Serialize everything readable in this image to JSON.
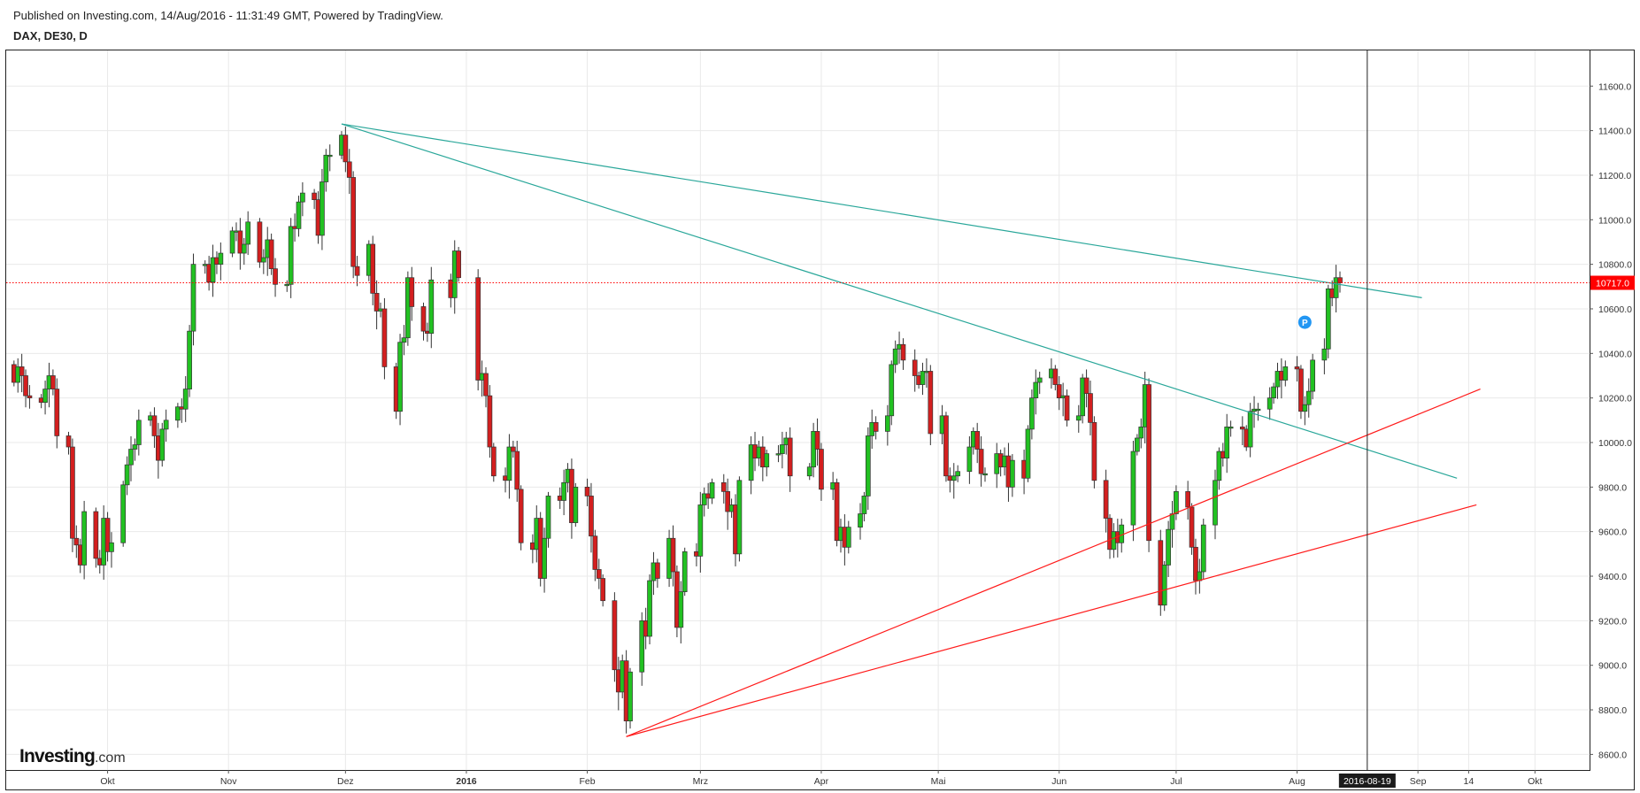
{
  "header": {
    "published": "Published on Investing.com, 14/Aug/2016 - 11:31:49 GMT, Powered by TradingView.",
    "symbol": "DAX, DE30, D"
  },
  "logo": {
    "brand": "Investing",
    "suffix": ".com"
  },
  "colors": {
    "up": "#22c122",
    "down": "#d31f1f",
    "teal": "#2aa79a",
    "red_trend": "#ff1a1a",
    "price_tag": "#ff0000",
    "cursor_tag": "#1b1b1b",
    "marker": "#2196f3"
  },
  "chart_data": {
    "type": "candlestick",
    "y_ticks": [
      "11600.0",
      "11400.0",
      "11200.0",
      "11000.0",
      "10800.0",
      "10600.0",
      "10400.0",
      "10200.0",
      "10000.0",
      "9800.0",
      "9600.0",
      "9400.0",
      "9200.0",
      "9000.0",
      "8800.0",
      "8600.0"
    ],
    "ylim": [
      8530,
      11760
    ],
    "x_ticks": [
      {
        "label": "Okt",
        "date": "2015-10-01",
        "bold": false
      },
      {
        "label": "Nov",
        "date": "2015-11-01",
        "bold": false
      },
      {
        "label": "Dez",
        "date": "2015-12-01",
        "bold": false
      },
      {
        "label": "2016",
        "date": "2016-01-01",
        "bold": true
      },
      {
        "label": "Feb",
        "date": "2016-02-01",
        "bold": false
      },
      {
        "label": "Mrz",
        "date": "2016-03-01",
        "bold": false
      },
      {
        "label": "Apr",
        "date": "2016-04-01",
        "bold": false
      },
      {
        "label": "Mai",
        "date": "2016-05-01",
        "bold": false
      },
      {
        "label": "Jun",
        "date": "2016-06-01",
        "bold": false
      },
      {
        "label": "Jul",
        "date": "2016-07-01",
        "bold": false
      },
      {
        "label": "Aug",
        "date": "2016-08-01",
        "bold": false
      },
      {
        "label": "Sep",
        "date": "2016-09-01",
        "bold": false
      },
      {
        "label": "14",
        "date": "2016-09-14",
        "bold": false
      },
      {
        "label": "Okt",
        "date": "2016-10-01",
        "bold": false
      }
    ],
    "xlim": [
      "2015-09-05",
      "2016-10-15"
    ],
    "last_price": 10717.0,
    "last_price_label": "10717.0",
    "cursor_date": "2016-08-19",
    "cursor_label": "2016-08-19",
    "marker": {
      "date": "2016-08-03",
      "value": 10540,
      "label": "P"
    },
    "trendlines": [
      {
        "name": "teal-upper",
        "color": "teal",
        "from": [
          "2015-11-30",
          11430
        ],
        "to": [
          "2016-09-02",
          10650
        ]
      },
      {
        "name": "teal-lower",
        "color": "teal",
        "from": [
          "2015-11-30",
          11430
        ],
        "to": [
          "2016-09-11",
          9840
        ]
      },
      {
        "name": "red-steep",
        "color": "red_trend",
        "from": [
          "2016-02-11",
          8680
        ],
        "to": [
          "2016-09-17",
          10240
        ]
      },
      {
        "name": "red-shallow",
        "color": "red_trend",
        "from": [
          "2016-02-11",
          8680
        ],
        "to": [
          "2016-09-16",
          9720
        ]
      }
    ],
    "closes": [
      {
        "d": "2015-09-07",
        "c": 10270
      },
      {
        "d": "2015-09-08",
        "c": 10340
      },
      {
        "d": "2015-09-09",
        "c": 10300
      },
      {
        "d": "2015-09-10",
        "c": 10210
      },
      {
        "d": "2015-09-11",
        "c": 10200
      },
      {
        "d": "2015-09-14",
        "c": 10180
      },
      {
        "d": "2015-09-15",
        "c": 10240
      },
      {
        "d": "2015-09-16",
        "c": 10300
      },
      {
        "d": "2015-09-17",
        "c": 10240
      },
      {
        "d": "2015-09-18",
        "c": 10030
      },
      {
        "d": "2015-09-21",
        "c": 9980
      },
      {
        "d": "2015-09-22",
        "c": 9570
      },
      {
        "d": "2015-09-23",
        "c": 9540
      },
      {
        "d": "2015-09-24",
        "c": 9450
      },
      {
        "d": "2015-09-25",
        "c": 9690
      },
      {
        "d": "2015-09-28",
        "c": 9480
      },
      {
        "d": "2015-09-29",
        "c": 9450
      },
      {
        "d": "2015-09-30",
        "c": 9660
      },
      {
        "d": "2015-10-01",
        "c": 9510
      },
      {
        "d": "2015-10-02",
        "c": 9550
      },
      {
        "d": "2015-10-05",
        "c": 9810
      },
      {
        "d": "2015-10-06",
        "c": 9900
      },
      {
        "d": "2015-10-07",
        "c": 9970
      },
      {
        "d": "2015-10-08",
        "c": 9990
      },
      {
        "d": "2015-10-09",
        "c": 10100
      },
      {
        "d": "2015-10-12",
        "c": 10120
      },
      {
        "d": "2015-10-13",
        "c": 10030
      },
      {
        "d": "2015-10-14",
        "c": 9920
      },
      {
        "d": "2015-10-15",
        "c": 10060
      },
      {
        "d": "2015-10-16",
        "c": 10100
      },
      {
        "d": "2015-10-19",
        "c": 10160
      },
      {
        "d": "2015-10-20",
        "c": 10150
      },
      {
        "d": "2015-10-21",
        "c": 10240
      },
      {
        "d": "2015-10-22",
        "c": 10500
      },
      {
        "d": "2015-10-23",
        "c": 10800
      },
      {
        "d": "2015-10-26",
        "c": 10800
      },
      {
        "d": "2015-10-27",
        "c": 10720
      },
      {
        "d": "2015-10-28",
        "c": 10830
      },
      {
        "d": "2015-10-29",
        "c": 10800
      },
      {
        "d": "2015-10-30",
        "c": 10850
      },
      {
        "d": "2015-11-02",
        "c": 10950
      },
      {
        "d": "2015-11-03",
        "c": 10950
      },
      {
        "d": "2015-11-04",
        "c": 10850
      },
      {
        "d": "2015-11-05",
        "c": 10890
      },
      {
        "d": "2015-11-06",
        "c": 10990
      },
      {
        "d": "2015-11-09",
        "c": 10810
      },
      {
        "d": "2015-11-10",
        "c": 10830
      },
      {
        "d": "2015-11-11",
        "c": 10910
      },
      {
        "d": "2015-11-12",
        "c": 10780
      },
      {
        "d": "2015-11-13",
        "c": 10710
      },
      {
        "d": "2015-11-16",
        "c": 10710
      },
      {
        "d": "2015-11-17",
        "c": 10970
      },
      {
        "d": "2015-11-18",
        "c": 10960
      },
      {
        "d": "2015-11-19",
        "c": 11080
      },
      {
        "d": "2015-11-20",
        "c": 11120
      },
      {
        "d": "2015-11-23",
        "c": 11090
      },
      {
        "d": "2015-11-24",
        "c": 10930
      },
      {
        "d": "2015-11-25",
        "c": 11170
      },
      {
        "d": "2015-11-26",
        "c": 11290
      },
      {
        "d": "2015-11-27",
        "c": 11290
      },
      {
        "d": "2015-11-30",
        "c": 11380
      },
      {
        "d": "2015-12-01",
        "c": 11260
      },
      {
        "d": "2015-12-02",
        "c": 11190
      },
      {
        "d": "2015-12-03",
        "c": 10790
      },
      {
        "d": "2015-12-04",
        "c": 10750
      },
      {
        "d": "2015-12-07",
        "c": 10890
      },
      {
        "d": "2015-12-08",
        "c": 10670
      },
      {
        "d": "2015-12-09",
        "c": 10590
      },
      {
        "d": "2015-12-10",
        "c": 10600
      },
      {
        "d": "2015-12-11",
        "c": 10340
      },
      {
        "d": "2015-12-14",
        "c": 10140
      },
      {
        "d": "2015-12-15",
        "c": 10450
      },
      {
        "d": "2015-12-16",
        "c": 10470
      },
      {
        "d": "2015-12-17",
        "c": 10740
      },
      {
        "d": "2015-12-18",
        "c": 10610
      },
      {
        "d": "2015-12-21",
        "c": 10500
      },
      {
        "d": "2015-12-22",
        "c": 10490
      },
      {
        "d": "2015-12-23",
        "c": 10730
      },
      {
        "d": "2015-12-28",
        "c": 10650
      },
      {
        "d": "2015-12-29",
        "c": 10860
      },
      {
        "d": "2015-12-30",
        "c": 10740
      },
      {
        "d": "2016-01-04",
        "c": 10280
      },
      {
        "d": "2016-01-05",
        "c": 10310
      },
      {
        "d": "2016-01-06",
        "c": 10210
      },
      {
        "d": "2016-01-07",
        "c": 9980
      },
      {
        "d": "2016-01-08",
        "c": 9850
      },
      {
        "d": "2016-01-11",
        "c": 9830
      },
      {
        "d": "2016-01-12",
        "c": 9980
      },
      {
        "d": "2016-01-13",
        "c": 9960
      },
      {
        "d": "2016-01-14",
        "c": 9790
      },
      {
        "d": "2016-01-15",
        "c": 9550
      },
      {
        "d": "2016-01-18",
        "c": 9520
      },
      {
        "d": "2016-01-19",
        "c": 9660
      },
      {
        "d": "2016-01-20",
        "c": 9390
      },
      {
        "d": "2016-01-21",
        "c": 9570
      },
      {
        "d": "2016-01-22",
        "c": 9760
      },
      {
        "d": "2016-01-25",
        "c": 9740
      },
      {
        "d": "2016-01-26",
        "c": 9820
      },
      {
        "d": "2016-01-27",
        "c": 9880
      },
      {
        "d": "2016-01-28",
        "c": 9640
      },
      {
        "d": "2016-01-29",
        "c": 9800
      },
      {
        "d": "2016-02-01",
        "c": 9760
      },
      {
        "d": "2016-02-02",
        "c": 9580
      },
      {
        "d": "2016-02-03",
        "c": 9430
      },
      {
        "d": "2016-02-04",
        "c": 9390
      },
      {
        "d": "2016-02-05",
        "c": 9290
      },
      {
        "d": "2016-02-08",
        "c": 8980
      },
      {
        "d": "2016-02-09",
        "c": 8880
      },
      {
        "d": "2016-02-10",
        "c": 9020
      },
      {
        "d": "2016-02-11",
        "c": 8750
      },
      {
        "d": "2016-02-12",
        "c": 8970
      },
      {
        "d": "2016-02-15",
        "c": 9200
      },
      {
        "d": "2016-02-16",
        "c": 9130
      },
      {
        "d": "2016-02-17",
        "c": 9380
      },
      {
        "d": "2016-02-18",
        "c": 9460
      },
      {
        "d": "2016-02-19",
        "c": 9390
      },
      {
        "d": "2016-02-22",
        "c": 9570
      },
      {
        "d": "2016-02-23",
        "c": 9420
      },
      {
        "d": "2016-02-24",
        "c": 9170
      },
      {
        "d": "2016-02-25",
        "c": 9330
      },
      {
        "d": "2016-02-26",
        "c": 9510
      },
      {
        "d": "2016-02-29",
        "c": 9490
      },
      {
        "d": "2016-03-01",
        "c": 9720
      },
      {
        "d": "2016-03-02",
        "c": 9770
      },
      {
        "d": "2016-03-03",
        "c": 9750
      },
      {
        "d": "2016-03-04",
        "c": 9820
      },
      {
        "d": "2016-03-07",
        "c": 9780
      },
      {
        "d": "2016-03-08",
        "c": 9690
      },
      {
        "d": "2016-03-09",
        "c": 9720
      },
      {
        "d": "2016-03-10",
        "c": 9500
      },
      {
        "d": "2016-03-11",
        "c": 9830
      },
      {
        "d": "2016-03-14",
        "c": 9990
      },
      {
        "d": "2016-03-15",
        "c": 9930
      },
      {
        "d": "2016-03-16",
        "c": 9980
      },
      {
        "d": "2016-03-17",
        "c": 9890
      },
      {
        "d": "2016-03-18",
        "c": 9950
      },
      {
        "d": "2016-03-21",
        "c": 9950
      },
      {
        "d": "2016-03-22",
        "c": 9990
      },
      {
        "d": "2016-03-23",
        "c": 10020
      },
      {
        "d": "2016-03-24",
        "c": 9850
      },
      {
        "d": "2016-03-29",
        "c": 9890
      },
      {
        "d": "2016-03-30",
        "c": 10050
      },
      {
        "d": "2016-03-31",
        "c": 9970
      },
      {
        "d": "2016-04-01",
        "c": 9790
      },
      {
        "d": "2016-04-04",
        "c": 9820
      },
      {
        "d": "2016-04-05",
        "c": 9560
      },
      {
        "d": "2016-04-06",
        "c": 9620
      },
      {
        "d": "2016-04-07",
        "c": 9530
      },
      {
        "d": "2016-04-08",
        "c": 9620
      },
      {
        "d": "2016-04-11",
        "c": 9680
      },
      {
        "d": "2016-04-12",
        "c": 9760
      },
      {
        "d": "2016-04-13",
        "c": 10030
      },
      {
        "d": "2016-04-14",
        "c": 10090
      },
      {
        "d": "2016-04-15",
        "c": 10050
      },
      {
        "d": "2016-04-18",
        "c": 10120
      },
      {
        "d": "2016-04-19",
        "c": 10350
      },
      {
        "d": "2016-04-20",
        "c": 10420
      },
      {
        "d": "2016-04-21",
        "c": 10440
      },
      {
        "d": "2016-04-22",
        "c": 10370
      },
      {
        "d": "2016-04-25",
        "c": 10300
      },
      {
        "d": "2016-04-26",
        "c": 10260
      },
      {
        "d": "2016-04-27",
        "c": 10320
      },
      {
        "d": "2016-04-28",
        "c": 10320
      },
      {
        "d": "2016-04-29",
        "c": 10040
      },
      {
        "d": "2016-05-02",
        "c": 10120
      },
      {
        "d": "2016-05-03",
        "c": 9850
      },
      {
        "d": "2016-05-04",
        "c": 9830
      },
      {
        "d": "2016-05-05",
        "c": 9850
      },
      {
        "d": "2016-05-06",
        "c": 9870
      },
      {
        "d": "2016-05-09",
        "c": 9980
      },
      {
        "d": "2016-05-10",
        "c": 10050
      },
      {
        "d": "2016-05-11",
        "c": 9970
      },
      {
        "d": "2016-05-12",
        "c": 9860
      },
      {
        "d": "2016-05-13",
        "c": 9860
      },
      {
        "d": "2016-05-16",
        "c": 9950
      },
      {
        "d": "2016-05-17",
        "c": 9890
      },
      {
        "d": "2016-05-18",
        "c": 9940
      },
      {
        "d": "2016-05-19",
        "c": 9800
      },
      {
        "d": "2016-05-20",
        "c": 9920
      },
      {
        "d": "2016-05-23",
        "c": 9840
      },
      {
        "d": "2016-05-24",
        "c": 10060
      },
      {
        "d": "2016-05-25",
        "c": 10200
      },
      {
        "d": "2016-05-26",
        "c": 10270
      },
      {
        "d": "2016-05-27",
        "c": 10290
      },
      {
        "d": "2016-05-30",
        "c": 10330
      },
      {
        "d": "2016-05-31",
        "c": 10260
      },
      {
        "d": "2016-06-01",
        "c": 10200
      },
      {
        "d": "2016-06-02",
        "c": 10210
      },
      {
        "d": "2016-06-03",
        "c": 10100
      },
      {
        "d": "2016-06-06",
        "c": 10120
      },
      {
        "d": "2016-06-07",
        "c": 10290
      },
      {
        "d": "2016-06-08",
        "c": 10220
      },
      {
        "d": "2016-06-09",
        "c": 10090
      },
      {
        "d": "2016-06-10",
        "c": 9830
      },
      {
        "d": "2016-06-13",
        "c": 9660
      },
      {
        "d": "2016-06-14",
        "c": 9520
      },
      {
        "d": "2016-06-15",
        "c": 9600
      },
      {
        "d": "2016-06-16",
        "c": 9550
      },
      {
        "d": "2016-06-17",
        "c": 9630
      },
      {
        "d": "2016-06-20",
        "c": 9960
      },
      {
        "d": "2016-06-21",
        "c": 10020
      },
      {
        "d": "2016-06-22",
        "c": 10070
      },
      {
        "d": "2016-06-23",
        "c": 10260
      },
      {
        "d": "2016-06-24",
        "c": 9560
      },
      {
        "d": "2016-06-27",
        "c": 9270
      },
      {
        "d": "2016-06-28",
        "c": 9450
      },
      {
        "d": "2016-06-29",
        "c": 9610
      },
      {
        "d": "2016-06-30",
        "c": 9680
      },
      {
        "d": "2016-07-01",
        "c": 9780
      },
      {
        "d": "2016-07-04",
        "c": 9710
      },
      {
        "d": "2016-07-05",
        "c": 9530
      },
      {
        "d": "2016-07-06",
        "c": 9380
      },
      {
        "d": "2016-07-07",
        "c": 9420
      },
      {
        "d": "2016-07-08",
        "c": 9630
      },
      {
        "d": "2016-07-11",
        "c": 9830
      },
      {
        "d": "2016-07-12",
        "c": 9960
      },
      {
        "d": "2016-07-13",
        "c": 9930
      },
      {
        "d": "2016-07-14",
        "c": 10070
      },
      {
        "d": "2016-07-15",
        "c": 10070
      },
      {
        "d": "2016-07-18",
        "c": 10060
      },
      {
        "d": "2016-07-19",
        "c": 9980
      },
      {
        "d": "2016-07-20",
        "c": 10140
      },
      {
        "d": "2016-07-21",
        "c": 10150
      },
      {
        "d": "2016-07-22",
        "c": 10150
      },
      {
        "d": "2016-07-25",
        "c": 10200
      },
      {
        "d": "2016-07-26",
        "c": 10250
      },
      {
        "d": "2016-07-27",
        "c": 10320
      },
      {
        "d": "2016-07-28",
        "c": 10280
      },
      {
        "d": "2016-07-29",
        "c": 10340
      },
      {
        "d": "2016-08-01",
        "c": 10330
      },
      {
        "d": "2016-08-02",
        "c": 10140
      },
      {
        "d": "2016-08-03",
        "c": 10170
      },
      {
        "d": "2016-08-04",
        "c": 10230
      },
      {
        "d": "2016-08-05",
        "c": 10370
      },
      {
        "d": "2016-08-08",
        "c": 10420
      },
      {
        "d": "2016-08-09",
        "c": 10690
      },
      {
        "d": "2016-08-10",
        "c": 10650
      },
      {
        "d": "2016-08-11",
        "c": 10740
      },
      {
        "d": "2016-08-12",
        "c": 10717
      }
    ]
  }
}
